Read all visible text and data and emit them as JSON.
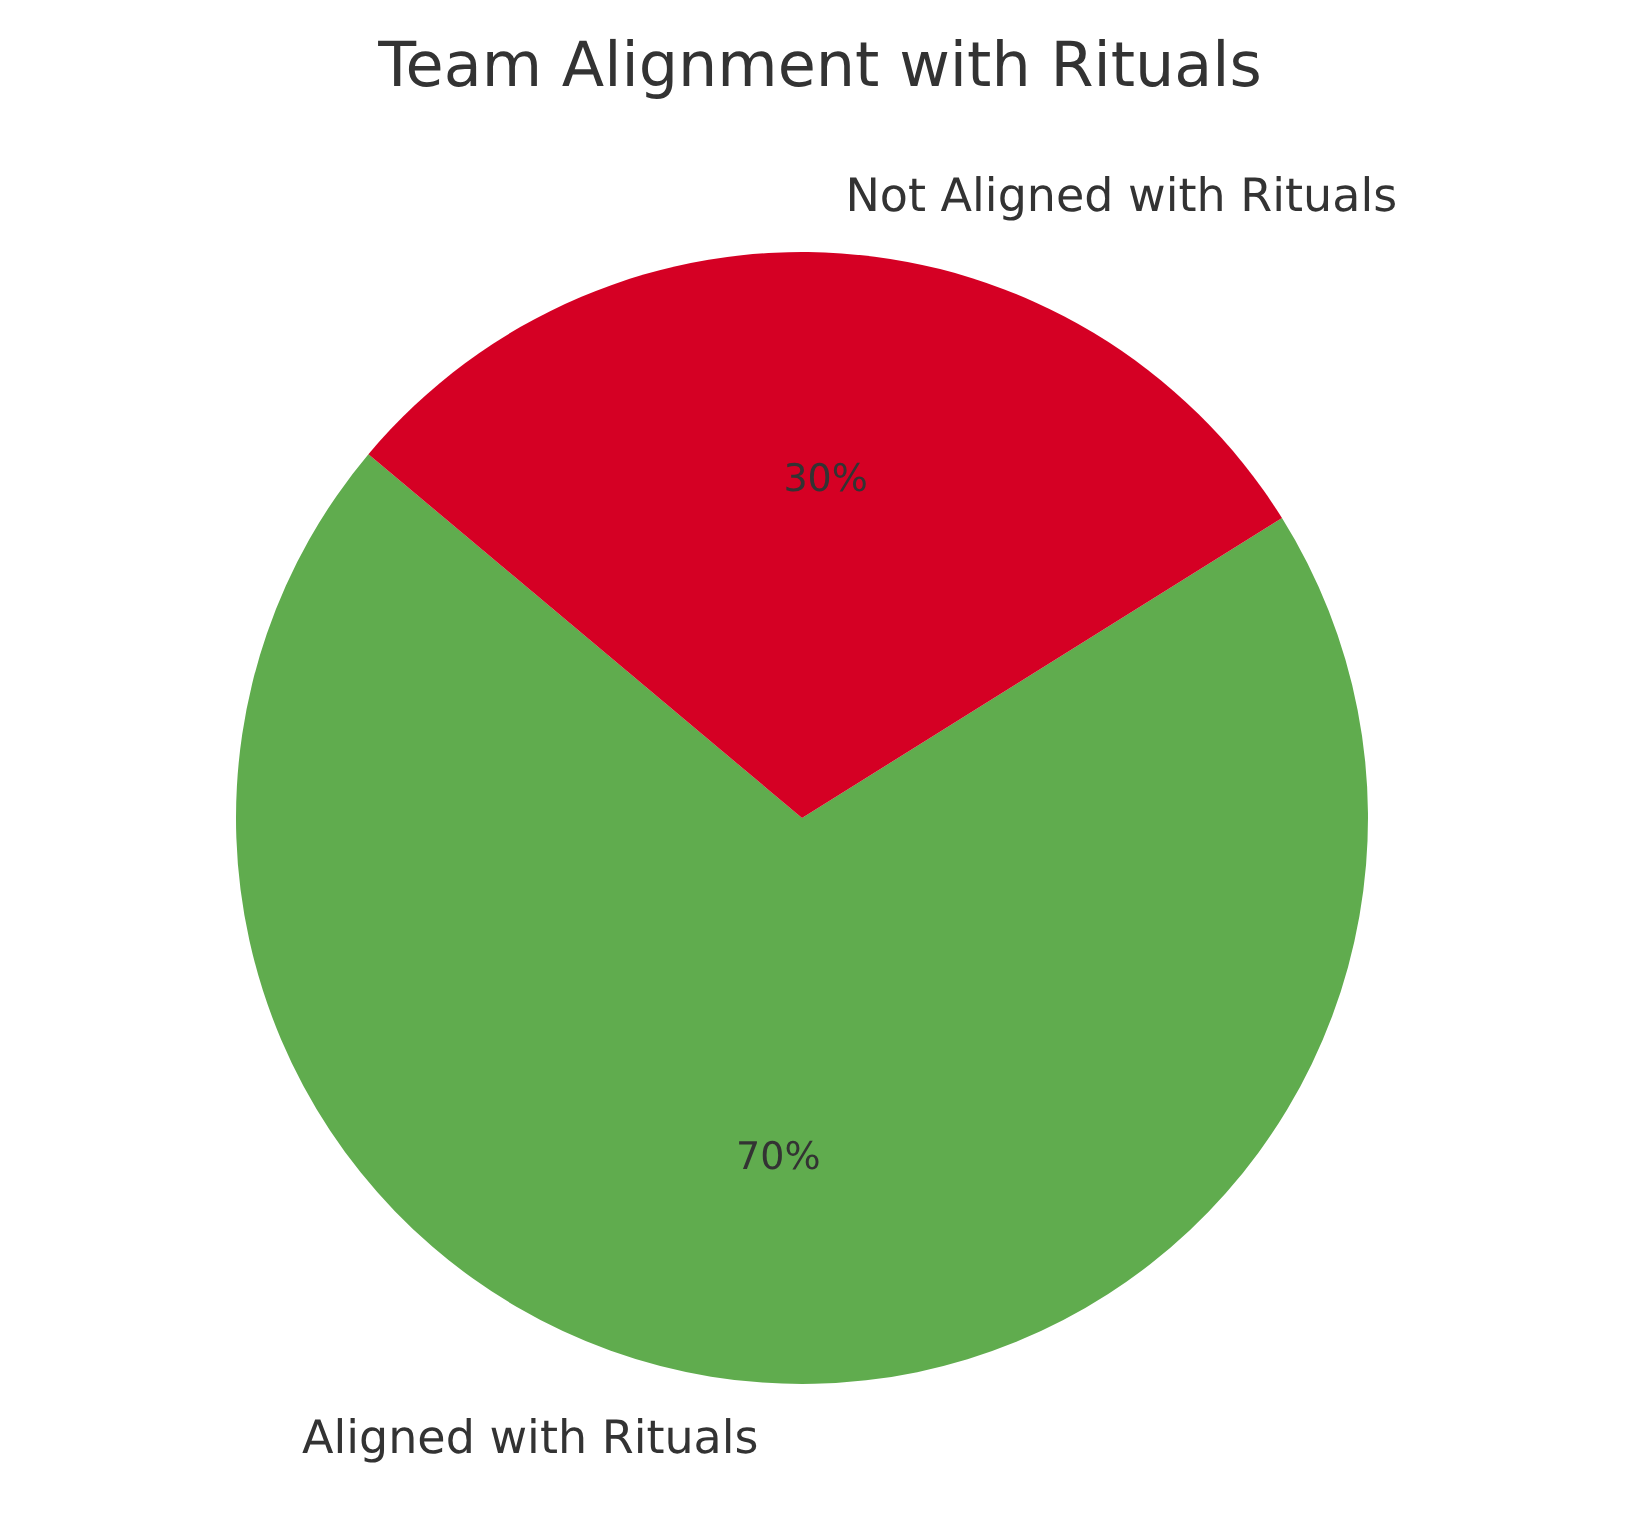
{
  "chart_data": {
    "type": "pie",
    "title": "Team Alignment with Rituals",
    "categories": [
      "Aligned with Rituals",
      "Not Aligned with Rituals"
    ],
    "values": [
      70,
      30
    ],
    "value_labels": [
      "70%",
      "30%"
    ],
    "colors": [
      "#60ac4e",
      "#d50024"
    ]
  }
}
